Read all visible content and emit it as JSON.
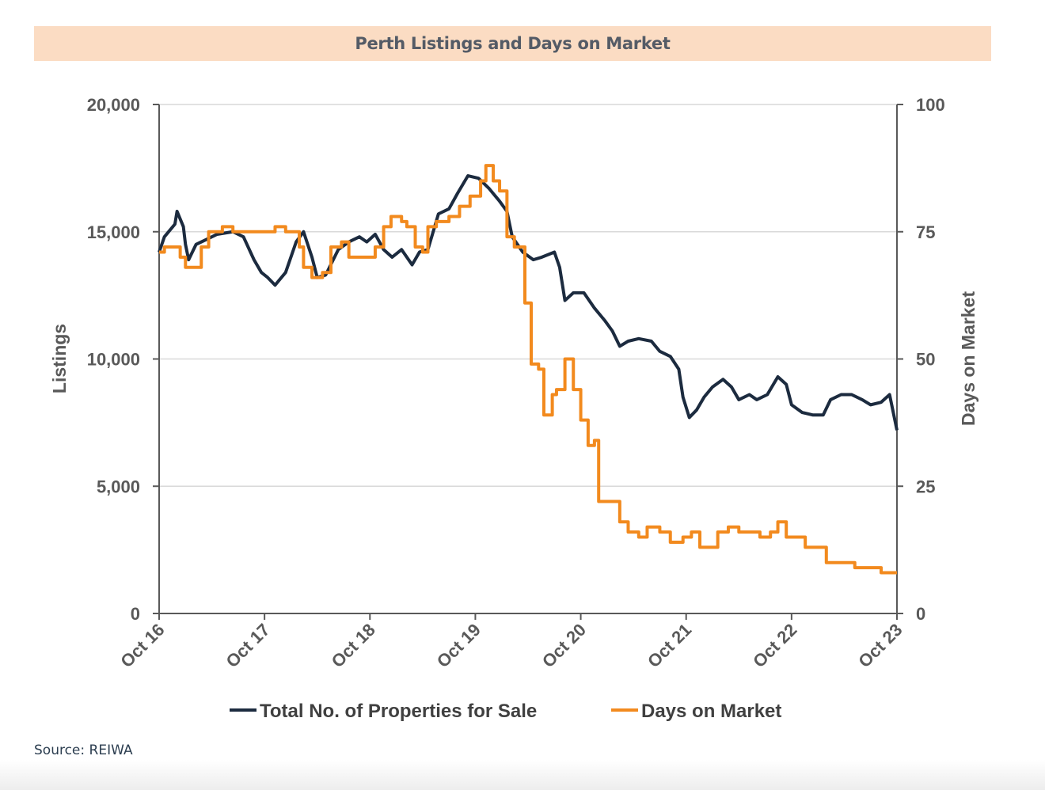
{
  "header": {
    "title": "Perth Listings and Days on Market"
  },
  "source": "Source: REIWA",
  "colors": {
    "listings": "#1c2b3f",
    "days": "#f28a1e",
    "grid": "#d9d9d9",
    "axis": "#595959"
  },
  "chart_data": {
    "type": "line",
    "title": "Perth Listings and Days on Market",
    "xlabel": "",
    "ylabel": "Listings",
    "y2label": "Days on Market",
    "ylim": [
      0,
      20000
    ],
    "y2lim": [
      0,
      100
    ],
    "yticks": [
      0,
      5000,
      10000,
      15000,
      20000
    ],
    "ytick_labels": [
      "0",
      "5,000",
      "10,000",
      "15,000",
      "20,000"
    ],
    "y2ticks": [
      0,
      25,
      50,
      75,
      100
    ],
    "y2tick_labels": [
      "0",
      "25",
      "50",
      "75",
      "100"
    ],
    "xlim": [
      2016.75,
      2023.75
    ],
    "xticks": [
      2016.75,
      2017.75,
      2018.75,
      2019.75,
      2020.75,
      2021.75,
      2022.75,
      2023.75
    ],
    "xtick_labels": [
      "Oct 16",
      "Oct 17",
      "Oct 18",
      "Oct 19",
      "Oct 20",
      "Oct 21",
      "Oct 22",
      "Oct 23"
    ],
    "series": [
      {
        "name": "Total No. of Properties for Sale",
        "axis": "left",
        "color": "#1c2b3f",
        "points": [
          [
            2016.75,
            14200
          ],
          [
            2016.8,
            14800
          ],
          [
            2016.9,
            15300
          ],
          [
            2016.92,
            15800
          ],
          [
            2016.98,
            15200
          ],
          [
            2017.0,
            14500
          ],
          [
            2017.03,
            13900
          ],
          [
            2017.1,
            14500
          ],
          [
            2017.2,
            14700
          ],
          [
            2017.3,
            14900
          ],
          [
            2017.45,
            15000
          ],
          [
            2017.55,
            14800
          ],
          [
            2017.65,
            13900
          ],
          [
            2017.72,
            13400
          ],
          [
            2017.78,
            13200
          ],
          [
            2017.85,
            12900
          ],
          [
            2017.95,
            13400
          ],
          [
            2018.05,
            14600
          ],
          [
            2018.12,
            15000
          ],
          [
            2018.2,
            14000
          ],
          [
            2018.25,
            13200
          ],
          [
            2018.33,
            13300
          ],
          [
            2018.45,
            14300
          ],
          [
            2018.55,
            14600
          ],
          [
            2018.65,
            14800
          ],
          [
            2018.72,
            14600
          ],
          [
            2018.8,
            14900
          ],
          [
            2018.88,
            14300
          ],
          [
            2018.96,
            14000
          ],
          [
            2019.05,
            14300
          ],
          [
            2019.15,
            13700
          ],
          [
            2019.22,
            14200
          ],
          [
            2019.3,
            14300
          ],
          [
            2019.4,
            15700
          ],
          [
            2019.5,
            15900
          ],
          [
            2019.58,
            16500
          ],
          [
            2019.68,
            17200
          ],
          [
            2019.78,
            17100
          ],
          [
            2019.88,
            16700
          ],
          [
            2019.98,
            16200
          ],
          [
            2020.05,
            15800
          ],
          [
            2020.1,
            14800
          ],
          [
            2020.2,
            14200
          ],
          [
            2020.3,
            13900
          ],
          [
            2020.38,
            14000
          ],
          [
            2020.5,
            14200
          ],
          [
            2020.55,
            13600
          ],
          [
            2020.6,
            12300
          ],
          [
            2020.68,
            12600
          ],
          [
            2020.78,
            12600
          ],
          [
            2020.88,
            12000
          ],
          [
            2020.98,
            11500
          ],
          [
            2021.05,
            11100
          ],
          [
            2021.12,
            10500
          ],
          [
            2021.2,
            10700
          ],
          [
            2021.3,
            10800
          ],
          [
            2021.42,
            10700
          ],
          [
            2021.5,
            10300
          ],
          [
            2021.6,
            10100
          ],
          [
            2021.68,
            9600
          ],
          [
            2021.72,
            8500
          ],
          [
            2021.78,
            7700
          ],
          [
            2021.85,
            8000
          ],
          [
            2021.92,
            8500
          ],
          [
            2022.0,
            8900
          ],
          [
            2022.1,
            9200
          ],
          [
            2022.18,
            8900
          ],
          [
            2022.25,
            8400
          ],
          [
            2022.35,
            8600
          ],
          [
            2022.42,
            8400
          ],
          [
            2022.52,
            8600
          ],
          [
            2022.62,
            9300
          ],
          [
            2022.7,
            9000
          ],
          [
            2022.75,
            8200
          ],
          [
            2022.85,
            7900
          ],
          [
            2022.95,
            7800
          ],
          [
            2023.05,
            7800
          ],
          [
            2023.12,
            8400
          ],
          [
            2023.22,
            8600
          ],
          [
            2023.32,
            8600
          ],
          [
            2023.42,
            8400
          ],
          [
            2023.5,
            8200
          ],
          [
            2023.6,
            8300
          ],
          [
            2023.68,
            8600
          ],
          [
            2023.75,
            7200
          ]
        ]
      },
      {
        "name": "Days on Market",
        "axis": "right",
        "color": "#f28a1e",
        "points": [
          [
            2016.75,
            71
          ],
          [
            2016.8,
            72
          ],
          [
            2016.88,
            72
          ],
          [
            2016.95,
            70
          ],
          [
            2017.0,
            68
          ],
          [
            2017.1,
            68
          ],
          [
            2017.15,
            72
          ],
          [
            2017.22,
            75
          ],
          [
            2017.35,
            76
          ],
          [
            2017.45,
            75
          ],
          [
            2017.7,
            75
          ],
          [
            2017.85,
            76
          ],
          [
            2017.95,
            75
          ],
          [
            2018.05,
            75
          ],
          [
            2018.08,
            72
          ],
          [
            2018.12,
            68
          ],
          [
            2018.2,
            66
          ],
          [
            2018.3,
            67
          ],
          [
            2018.38,
            72
          ],
          [
            2018.48,
            73
          ],
          [
            2018.55,
            70
          ],
          [
            2018.72,
            70
          ],
          [
            2018.8,
            72
          ],
          [
            2018.88,
            76
          ],
          [
            2018.95,
            78
          ],
          [
            2019.05,
            77
          ],
          [
            2019.1,
            76
          ],
          [
            2019.18,
            72
          ],
          [
            2019.25,
            71
          ],
          [
            2019.3,
            76
          ],
          [
            2019.38,
            77
          ],
          [
            2019.5,
            78
          ],
          [
            2019.6,
            80
          ],
          [
            2019.7,
            82
          ],
          [
            2019.8,
            85
          ],
          [
            2019.85,
            88
          ],
          [
            2019.92,
            85
          ],
          [
            2019.98,
            83
          ],
          [
            2020.05,
            74
          ],
          [
            2020.12,
            72
          ],
          [
            2020.18,
            72
          ],
          [
            2020.22,
            61
          ],
          [
            2020.28,
            49
          ],
          [
            2020.35,
            48
          ],
          [
            2020.4,
            39
          ],
          [
            2020.48,
            43
          ],
          [
            2020.52,
            44
          ],
          [
            2020.6,
            50
          ],
          [
            2020.68,
            44
          ],
          [
            2020.75,
            38
          ],
          [
            2020.82,
            33
          ],
          [
            2020.88,
            34
          ],
          [
            2020.92,
            22
          ],
          [
            2020.98,
            22
          ],
          [
            2021.05,
            22
          ],
          [
            2021.12,
            18
          ],
          [
            2021.2,
            16
          ],
          [
            2021.3,
            15
          ],
          [
            2021.38,
            17
          ],
          [
            2021.5,
            16
          ],
          [
            2021.6,
            14
          ],
          [
            2021.72,
            15
          ],
          [
            2021.8,
            16
          ],
          [
            2021.88,
            13
          ],
          [
            2021.98,
            13
          ],
          [
            2022.05,
            16
          ],
          [
            2022.15,
            17
          ],
          [
            2022.25,
            16
          ],
          [
            2022.35,
            16
          ],
          [
            2022.45,
            15
          ],
          [
            2022.55,
            16
          ],
          [
            2022.62,
            18
          ],
          [
            2022.7,
            15
          ],
          [
            2022.78,
            15
          ],
          [
            2022.88,
            13
          ],
          [
            2022.98,
            13
          ],
          [
            2023.08,
            10
          ],
          [
            2023.2,
            10
          ],
          [
            2023.35,
            9
          ],
          [
            2023.5,
            9
          ],
          [
            2023.6,
            8
          ],
          [
            2023.75,
            8
          ]
        ]
      }
    ],
    "legend": {
      "position": "bottom",
      "items": [
        "Total No. of Properties for Sale",
        "Days on Market"
      ]
    },
    "grid": true
  }
}
